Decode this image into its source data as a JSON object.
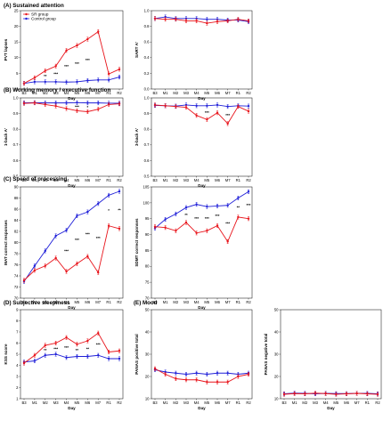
{
  "sections": [
    {
      "id": "A",
      "label": "(A) Sustained attention"
    },
    {
      "id": "B",
      "label": "(B) Working memory / executive function"
    },
    {
      "id": "C",
      "label": "(C) Speed of processing"
    },
    {
      "id": "D",
      "label": "(D) Subjective sleepiness"
    },
    {
      "id": "E",
      "label": "(E) Mood"
    }
  ],
  "legend": {
    "sr": "SR group",
    "control": "Control group"
  },
  "colors": {
    "sr": "#e8141b",
    "control": "#1f1fd8"
  },
  "chart_data": [
    {
      "id": "pvt",
      "type": "line",
      "ylabel": "PVT lapses",
      "xlabel": "Day",
      "categories": [
        "B3",
        "M1",
        "M2",
        "M3",
        "M4",
        "M5",
        "M6",
        "M7",
        "R1",
        "R2"
      ],
      "ylim": [
        0,
        25
      ],
      "yticks": [
        "0",
        "5",
        "10",
        "15",
        "20",
        "25"
      ],
      "series": [
        {
          "name": "SR group",
          "values": [
            1.8,
            3.6,
            5.8,
            7.3,
            12.3,
            13.9,
            15.9,
            18.3,
            4.8,
            6.3
          ]
        },
        {
          "name": "Control group",
          "values": [
            1.8,
            2.3,
            2.3,
            2.3,
            2.2,
            2.3,
            2.7,
            2.9,
            2.9,
            3.8
          ]
        }
      ],
      "annotations": [
        "",
        "",
        "**",
        "***",
        "***",
        "***",
        "***",
        "",
        "",
        ""
      ],
      "legend": true
    },
    {
      "id": "sart",
      "type": "line",
      "ylabel": "SART A'",
      "xlabel": "Day",
      "categories": [
        "B3",
        "M1",
        "M2",
        "M3",
        "M4",
        "M5",
        "M6",
        "M7",
        "R1",
        "R2"
      ],
      "ylim": [
        0.0,
        1.0
      ],
      "yticks": [
        "0.0",
        "0.2",
        "0.4",
        "0.6",
        "0.8",
        "1.0"
      ],
      "series": [
        {
          "name": "SR group",
          "values": [
            0.9,
            0.89,
            0.89,
            0.87,
            0.87,
            0.84,
            0.86,
            0.87,
            0.89,
            0.87
          ]
        },
        {
          "name": "Control group",
          "values": [
            0.9,
            0.92,
            0.9,
            0.9,
            0.9,
            0.89,
            0.89,
            0.88,
            0.88,
            0.86
          ]
        }
      ],
      "annotations": [
        "",
        "",
        "",
        "",
        "",
        "",
        "",
        "",
        "",
        ""
      ]
    },
    {
      "id": "oneback",
      "type": "line",
      "ylabel": "1-back A'",
      "xlabel": "Day",
      "categories": [
        "B3",
        "M1",
        "M2",
        "M3",
        "M4",
        "M5",
        "M6",
        "M7",
        "R1",
        "R2"
      ],
      "ylim": [
        0.5,
        1.0
      ],
      "yticks": [
        "0.5",
        "0.6",
        "0.7",
        "0.8",
        "0.9",
        "1.0"
      ],
      "series": [
        {
          "name": "SR group",
          "values": [
            0.965,
            0.968,
            0.958,
            0.948,
            0.932,
            0.918,
            0.912,
            0.928,
            0.958,
            0.962
          ]
        },
        {
          "name": "Control group",
          "values": [
            0.968,
            0.97,
            0.968,
            0.968,
            0.968,
            0.97,
            0.968,
            0.968,
            0.966,
            0.966
          ]
        }
      ],
      "annotations": [
        "",
        "",
        "",
        "",
        "",
        "***",
        "*",
        "",
        "",
        ""
      ]
    },
    {
      "id": "threeback",
      "type": "line",
      "ylabel": "3-back A'",
      "xlabel": "Day",
      "categories": [
        "B3",
        "M1",
        "M2",
        "M3",
        "M4",
        "M5",
        "M6",
        "M7",
        "R1",
        "R2"
      ],
      "ylim": [
        0.5,
        1.0
      ],
      "yticks": [
        "0.5",
        "0.6",
        "0.7",
        "0.8",
        "0.9",
        "1.0"
      ],
      "series": [
        {
          "name": "SR group",
          "values": [
            0.955,
            0.95,
            0.945,
            0.94,
            0.888,
            0.862,
            0.905,
            0.836,
            0.945,
            0.915
          ]
        },
        {
          "name": "Control group",
          "values": [
            0.952,
            0.95,
            0.948,
            0.955,
            0.95,
            0.95,
            0.955,
            0.945,
            0.95,
            0.948
          ]
        }
      ],
      "annotations": [
        "",
        "",
        "",
        "",
        "",
        "***",
        "",
        "***",
        "",
        ""
      ]
    },
    {
      "id": "mat",
      "type": "line",
      "ylabel": "MAT correct responses",
      "xlabel": "Day",
      "categories": [
        "B3",
        "M1",
        "M2",
        "M3",
        "M4",
        "M5",
        "M6",
        "M7",
        "R1",
        "R2"
      ],
      "ylim": [
        70,
        90
      ],
      "yticks": [
        "70",
        "72",
        "74",
        "76",
        "78",
        "80",
        "82",
        "84",
        "86",
        "88",
        "90"
      ],
      "series": [
        {
          "name": "SR group",
          "values": [
            73.2,
            75.0,
            75.8,
            77.2,
            74.8,
            76.2,
            77.5,
            74.6,
            83.0,
            82.5
          ]
        },
        {
          "name": "Control group",
          "values": [
            73.0,
            75.8,
            78.5,
            81.2,
            82.2,
            84.8,
            85.5,
            87.0,
            88.5,
            89.2
          ]
        }
      ],
      "annotations": [
        "",
        "",
        "",
        "",
        "***",
        "***",
        "***",
        "***",
        "*",
        "**"
      ]
    },
    {
      "id": "sdmt",
      "type": "line",
      "ylabel": "SDMT correct responses",
      "xlabel": "Day",
      "categories": [
        "B3",
        "M1",
        "M2",
        "M3",
        "M4",
        "M5",
        "M6",
        "M7",
        "R1",
        "R2"
      ],
      "ylim": [
        70,
        105
      ],
      "yticks": [
        "70",
        "75",
        "80",
        "85",
        "90",
        "95",
        "100",
        "105"
      ],
      "series": [
        {
          "name": "SR group",
          "values": [
            92.5,
            92.2,
            91.2,
            93.8,
            90.5,
            91.2,
            92.8,
            87.8,
            95.5,
            95.0
          ]
        },
        {
          "name": "Control group",
          "values": [
            92.0,
            94.8,
            96.5,
            98.5,
            99.5,
            98.8,
            99.0,
            99.2,
            101.5,
            103.5
          ]
        }
      ],
      "annotations": [
        "",
        "",
        "",
        "**",
        "***",
        "***",
        "***",
        "***",
        "**",
        "***"
      ]
    },
    {
      "id": "kss",
      "type": "line",
      "ylabel": "KSS score",
      "xlabel": "Day",
      "categories": [
        "B3",
        "M1",
        "M2",
        "M3",
        "M4",
        "M5",
        "M6",
        "M7",
        "R1",
        "R2"
      ],
      "ylim": [
        1,
        9
      ],
      "yticks": [
        "1",
        "2",
        "3",
        "4",
        "5",
        "6",
        "7",
        "8",
        "9"
      ],
      "series": [
        {
          "name": "SR group",
          "values": [
            4.2,
            4.9,
            5.8,
            6.0,
            6.5,
            5.9,
            6.2,
            6.9,
            5.2,
            5.3
          ]
        },
        {
          "name": "Control group",
          "values": [
            4.3,
            4.4,
            4.9,
            5.0,
            4.7,
            4.8,
            4.8,
            4.9,
            4.6,
            4.6
          ]
        }
      ],
      "annotations": [
        "",
        "",
        "**",
        "***",
        "***",
        "**",
        "**",
        "***",
        "",
        ""
      ]
    },
    {
      "id": "panas_pos",
      "type": "line",
      "ylabel": "PANAS positive total",
      "xlabel": "Day",
      "categories": [
        "B3",
        "M1",
        "M2",
        "M3",
        "M4",
        "M5",
        "M6",
        "M7",
        "R1",
        "R2"
      ],
      "ylim": [
        10,
        50
      ],
      "yticks": [
        "10",
        "20",
        "30",
        "40",
        "50"
      ],
      "series": [
        {
          "name": "SR group",
          "values": [
            23.5,
            21.0,
            19.0,
            18.5,
            18.5,
            17.5,
            17.5,
            17.5,
            20.0,
            21.0
          ]
        },
        {
          "name": "Control group",
          "values": [
            23.0,
            22.0,
            21.5,
            21.0,
            21.5,
            21.0,
            21.5,
            21.5,
            21.0,
            21.5
          ]
        }
      ],
      "annotations": [
        "",
        "",
        "",
        "",
        "",
        "",
        "",
        "",
        "",
        ""
      ]
    },
    {
      "id": "panas_neg",
      "type": "line",
      "ylabel": "PANAS negative total",
      "xlabel": "Day",
      "categories": [
        "B3",
        "M1",
        "M2",
        "M3",
        "M4",
        "M5",
        "M6",
        "M7",
        "R1",
        "R2"
      ],
      "ylim": [
        10,
        50
      ],
      "yticks": [
        "10",
        "20",
        "30",
        "40",
        "50"
      ],
      "series": [
        {
          "name": "SR group",
          "values": [
            12.0,
            12.3,
            12.2,
            12.5,
            12.3,
            12.0,
            12.2,
            12.4,
            12.2,
            12.0
          ]
        },
        {
          "name": "Control group",
          "values": [
            12.2,
            12.5,
            12.4,
            12.2,
            12.4,
            12.3,
            12.3,
            12.4,
            12.4,
            12.2
          ]
        }
      ],
      "annotations": [
        "",
        "",
        "",
        "",
        "",
        "",
        "",
        "",
        "",
        ""
      ]
    }
  ]
}
